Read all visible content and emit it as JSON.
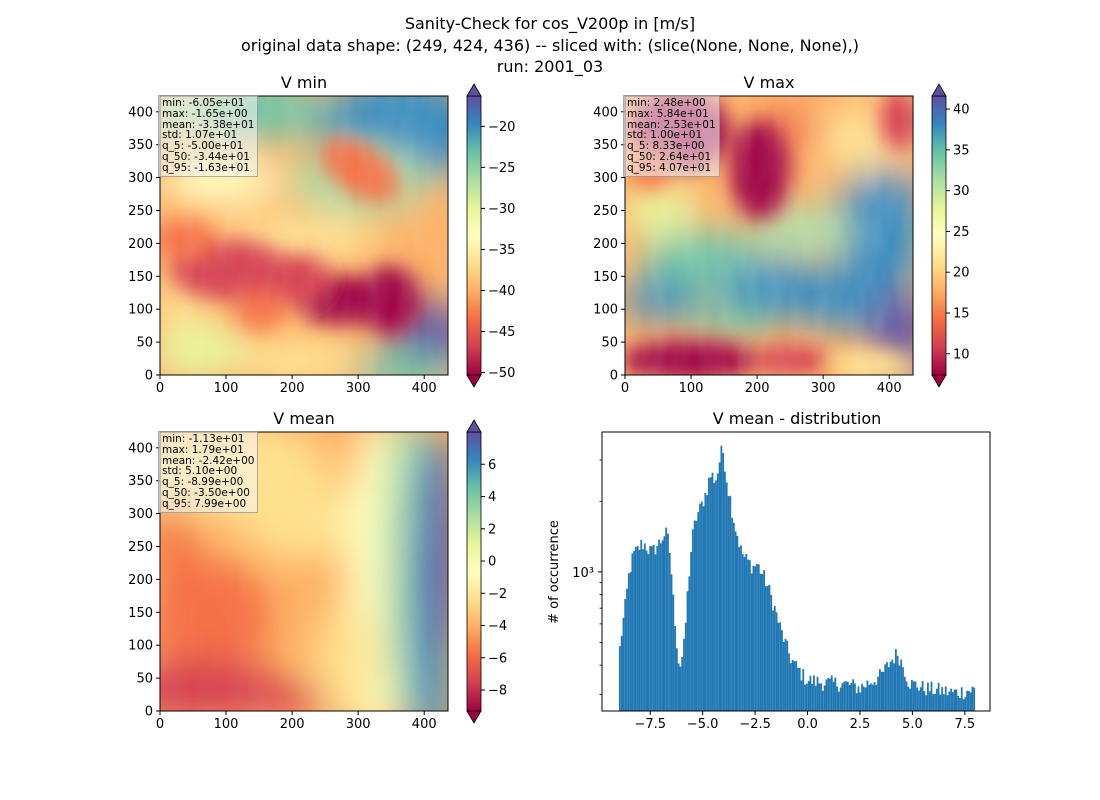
{
  "title_lines": [
    "Sanity-Check for cos_V200p in [m/s]",
    "original data shape: (249, 424, 436) -- sliced with: (slice(None, None, None),)",
    "run: 2001_03"
  ],
  "colormap": "Spectral",
  "map_colors": [
    "#9e0142",
    "#d53e4f",
    "#f46d43",
    "#fdae61",
    "#fee08b",
    "#ffffbf",
    "#e6f598",
    "#abdda4",
    "#66c2a5",
    "#3288bd",
    "#5e4fa2"
  ],
  "hist_color": "#1f77b4",
  "chart_data": [
    {
      "type": "heatmap",
      "title": "V min",
      "xlim": [
        0,
        436
      ],
      "ylim": [
        0,
        424
      ],
      "xticks": [
        0,
        100,
        200,
        300,
        400
      ],
      "yticks": [
        0,
        50,
        100,
        150,
        200,
        250,
        300,
        350,
        400
      ],
      "colorbar": {
        "range": [
          -50.3,
          -16.3
        ],
        "ticks": [
          -50,
          -45,
          -40,
          -35,
          -30,
          -25,
          -20
        ],
        "extend": "both"
      },
      "stats": [
        "min: -6.05e+01",
        "max: -1.65e+00",
        "mean: -3.38e+01",
        "std: 1.07e+01",
        "q_5: -5.00e+01",
        "q_50: -3.44e+01",
        "q_95: -1.63e+01"
      ]
    },
    {
      "type": "heatmap",
      "title": "V max",
      "xlim": [
        0,
        436
      ],
      "ylim": [
        0,
        424
      ],
      "xticks": [
        0,
        100,
        200,
        300,
        400
      ],
      "yticks": [
        0,
        50,
        100,
        150,
        200,
        250,
        300,
        350,
        400
      ],
      "colorbar": {
        "range": [
          7.4,
          41.6
        ],
        "ticks": [
          10,
          15,
          20,
          25,
          30,
          35,
          40
        ],
        "extend": "both"
      },
      "stats": [
        "min: 2.48e+00",
        "max: 5.84e+01",
        "mean: 2.53e+01",
        "std: 1.00e+01",
        "q_5: 8.33e+00",
        "q_50: 2.64e+01",
        "q_95: 4.07e+01"
      ]
    },
    {
      "type": "heatmap",
      "title": "V mean",
      "xlim": [
        0,
        436
      ],
      "ylim": [
        0,
        424
      ],
      "xticks": [
        0,
        100,
        200,
        300,
        400
      ],
      "yticks": [
        0,
        50,
        100,
        150,
        200,
        250,
        300,
        350,
        400
      ],
      "colorbar": {
        "range": [
          -9.3,
          8.0
        ],
        "ticks": [
          -8,
          -6,
          -4,
          -2,
          0,
          2,
          4,
          6
        ],
        "extend": "both"
      },
      "stats": [
        "min: -1.13e+01",
        "max: 1.79e+01",
        "mean: -2.42e+00",
        "std: 5.10e+00",
        "q_5: -8.99e+00",
        "q_50: -3.50e+00",
        "q_95: 7.99e+00"
      ]
    },
    {
      "type": "bar",
      "title": "V mean - distribution",
      "ylabel": "# of occurrence",
      "yscale": "log",
      "xlim": [
        -9.8,
        8.7
      ],
      "ylim": [
        255,
        3950
      ],
      "xticks": [
        -7.5,
        -5.0,
        -2.5,
        0.0,
        2.5,
        5.0,
        7.5
      ],
      "ytick_label": "10³",
      "ytick_value": 1000,
      "profile_x": [
        -8.99,
        -8.9,
        -8.7,
        -8.5,
        -8.3,
        -8.1,
        -7.9,
        -7.7,
        -7.6,
        -7.5,
        -7.4,
        -7.3,
        -7.15,
        -7.0,
        -6.9,
        -6.8,
        -6.7,
        -6.6,
        -6.5,
        -6.45,
        -6.35,
        -6.25,
        -6.15,
        -6.05,
        -5.9,
        -5.8,
        -5.7,
        -5.6,
        -5.5,
        -5.4,
        -5.3,
        -5.2,
        -5.1,
        -5.0,
        -4.9,
        -4.8,
        -4.7,
        -4.6,
        -4.5,
        -4.4,
        -4.3,
        -4.2,
        -4.1,
        -4.0,
        -3.9,
        -3.8,
        -3.7,
        -3.6,
        -3.5,
        -3.4,
        -3.3,
        -3.2,
        -3.0,
        -2.8,
        -2.6,
        -2.4,
        -2.2,
        -2.0,
        -1.8,
        -1.6,
        -1.4,
        -1.2,
        -1.0,
        -0.8,
        -0.6,
        -0.4,
        -0.2,
        0.0,
        0.5,
        1.0,
        1.5,
        2.0,
        2.5,
        3.0,
        3.5,
        4.0,
        4.3,
        4.6,
        4.8,
        5.0,
        5.2,
        5.5,
        6.0,
        6.5,
        7.0,
        7.5,
        7.99
      ],
      "profile_counts": [
        430,
        520,
        700,
        1000,
        1180,
        1240,
        1320,
        1300,
        1250,
        1230,
        1210,
        1250,
        1300,
        1350,
        1420,
        1460,
        1440,
        1300,
        1050,
        850,
        680,
        520,
        420,
        400,
        470,
        620,
        850,
        1100,
        1380,
        1550,
        1700,
        1800,
        1870,
        1980,
        2100,
        2250,
        2450,
        2600,
        2550,
        2450,
        2600,
        2950,
        3250,
        3250,
        2700,
        2300,
        2100,
        1850,
        1650,
        1500,
        1400,
        1250,
        1150,
        1100,
        1050,
        1080,
        1000,
        920,
        820,
        720,
        620,
        540,
        480,
        430,
        400,
        380,
        360,
        345,
        340,
        335,
        335,
        330,
        320,
        340,
        360,
        420,
        450,
        390,
        345,
        330,
        330,
        320,
        315,
        310,
        305,
        310,
        315
      ],
      "bin_count": 200
    }
  ]
}
